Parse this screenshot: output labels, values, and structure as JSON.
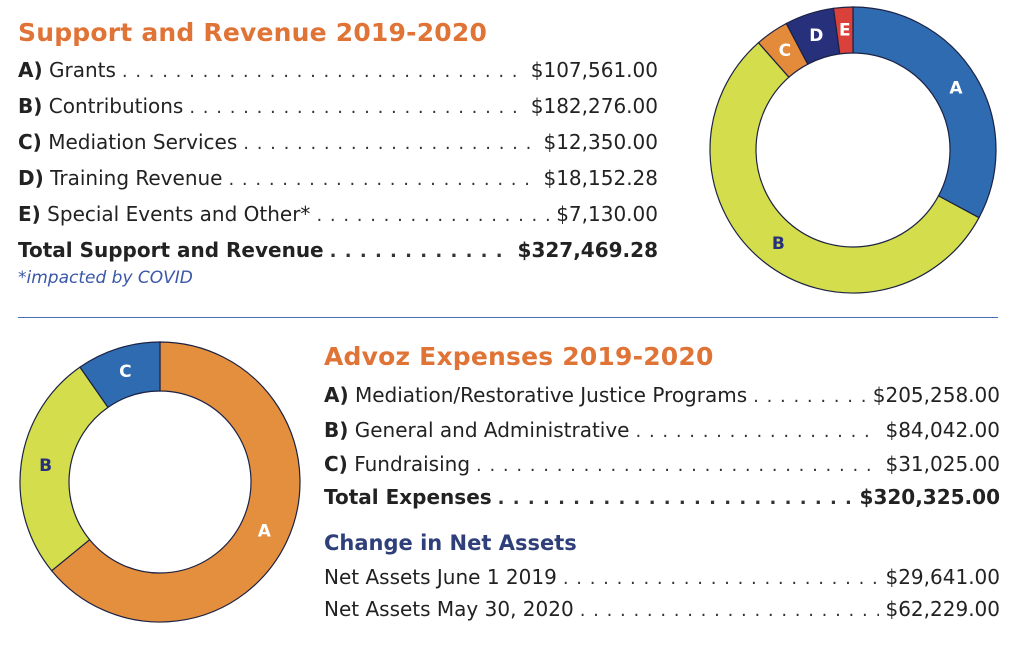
{
  "revenue": {
    "title": "Support and Revenue 2019-2020",
    "items": [
      {
        "key": "A)",
        "label": "Grants",
        "value": "$107,561.00"
      },
      {
        "key": "B)",
        "label": "Contributions",
        "value": "$182,276.00"
      },
      {
        "key": "C)",
        "label": "Mediation Services",
        "value": "$12,350.00"
      },
      {
        "key": "D)",
        "label": "Training Revenue",
        "value": "$18,152.28"
      },
      {
        "key": "E)",
        "label": "Special Events and Other*",
        "value": "$7,130.00"
      }
    ],
    "total_label": "Total Support and Revenue",
    "total_value": "$327,469.28",
    "note": "*impacted by COVID"
  },
  "expenses": {
    "title": "Advoz Expenses 2019-2020",
    "items": [
      {
        "key": "A)",
        "label": "Mediation/Restorative Justice Programs",
        "value": "$205,258.00"
      },
      {
        "key": "B)",
        "label": "General and Administrative",
        "value": "$84,042.00"
      },
      {
        "key": "C)",
        "label": "Fundraising",
        "value": "$31,025.00"
      }
    ],
    "total_label": "Total Expenses",
    "total_value": "$320,325.00"
  },
  "net_assets": {
    "title": "Change in Net Assets",
    "items": [
      {
        "label": "Net Assets June 1 2019",
        "value": "$29,641.00"
      },
      {
        "label": "Net Assets May 30, 2020",
        "value": "$62,229.00"
      }
    ]
  },
  "chart_data": [
    {
      "type": "pie",
      "title": "",
      "donut": true,
      "categories": [
        "A",
        "B",
        "C",
        "D",
        "E"
      ],
      "values": [
        107561.0,
        182276.0,
        12350.0,
        18152.28,
        7130.0
      ],
      "colors": [
        "#2e6bb0",
        "#d4de4c",
        "#e38b3a",
        "#27307a",
        "#d9413a"
      ],
      "label_colors": [
        "#ffffff",
        "#27307a",
        "#ffffff",
        "#ffffff",
        "#ffffff"
      ]
    },
    {
      "type": "pie",
      "title": "",
      "donut": true,
      "categories": [
        "A",
        "B",
        "C"
      ],
      "values": [
        205258.0,
        84042.0,
        31025.0
      ],
      "colors": [
        "#e48f3e",
        "#d4de4c",
        "#2e6bb0"
      ],
      "label_colors": [
        "#ffffff",
        "#27307a",
        "#ffffff"
      ]
    }
  ]
}
